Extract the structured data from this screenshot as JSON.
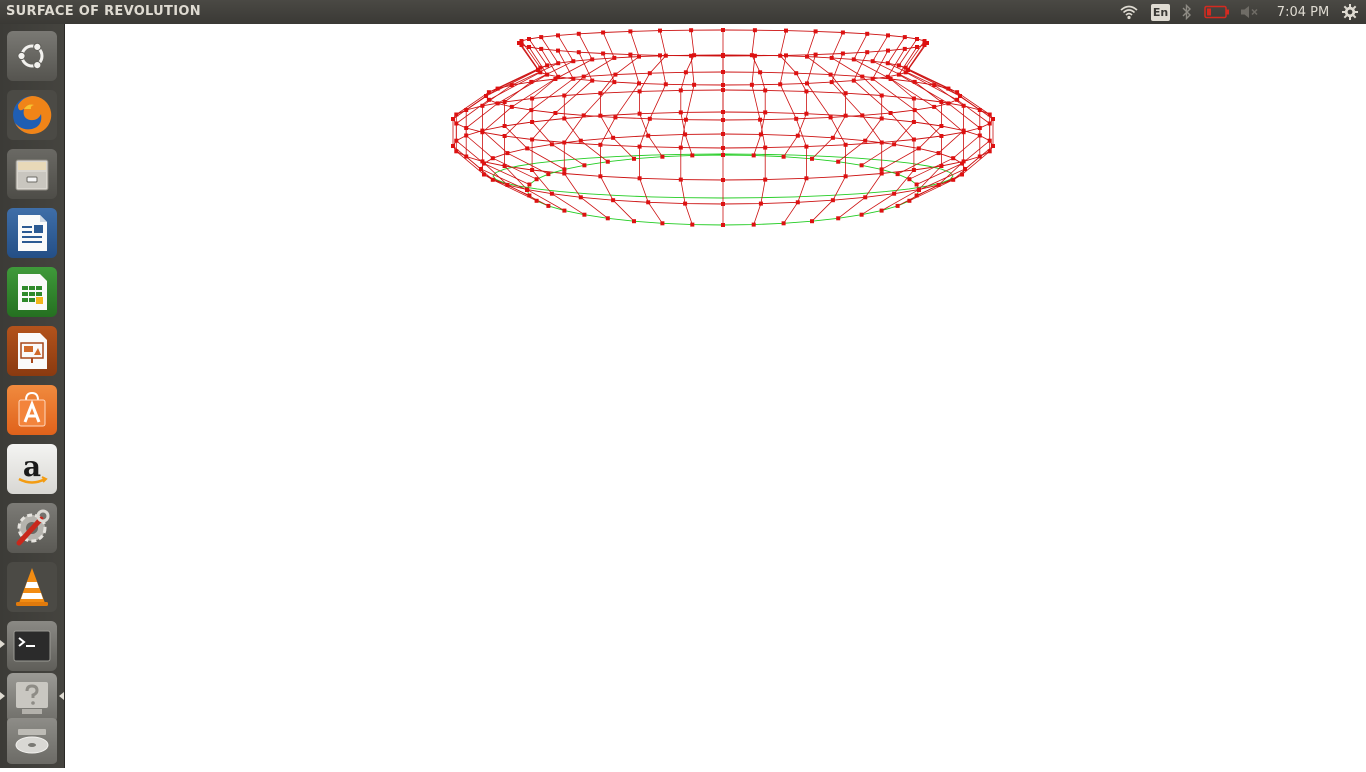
{
  "window": {
    "title": "SURFACE OF REVOLUTION"
  },
  "panel": {
    "input_language": "En",
    "clock": "7:04 PM",
    "indicators": [
      "wifi-icon",
      "keyboard-language-icon",
      "bluetooth-icon",
      "battery-icon",
      "volume-muted-icon",
      "session-gear-icon"
    ],
    "battery_color": "#d52a20"
  },
  "launcher": {
    "items": [
      {
        "name": "ubuntu-dash",
        "icon": "ubuntu-logo-icon"
      },
      {
        "name": "firefox",
        "icon": "firefox-icon"
      },
      {
        "name": "files",
        "icon": "file-cabinet-icon"
      },
      {
        "name": "libreoffice-writer",
        "icon": "writer-document-icon"
      },
      {
        "name": "libreoffice-calc",
        "icon": "calc-spreadsheet-icon"
      },
      {
        "name": "libreoffice-impress",
        "icon": "impress-presentation-icon"
      },
      {
        "name": "ubuntu-software-center",
        "icon": "software-bag-icon"
      },
      {
        "name": "amazon",
        "icon": "amazon-icon"
      },
      {
        "name": "system-settings",
        "icon": "settings-wrench-icon"
      },
      {
        "name": "vlc",
        "icon": "vlc-cone-icon"
      },
      {
        "name": "terminal",
        "icon": "terminal-icon"
      },
      {
        "name": "unknown-application",
        "icon": "question-mark-icon"
      },
      {
        "name": "dvd-drive",
        "icon": "optical-disc-icon"
      }
    ]
  },
  "scene": {
    "wire_color": "#cc1010",
    "vertex_color": "#dd1111",
    "bottom_ring_color": "#22cc22",
    "meridians": 40,
    "profile_rings": 7
  }
}
